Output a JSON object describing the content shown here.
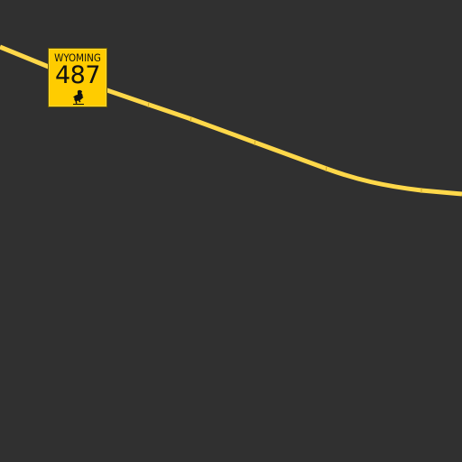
{
  "map": {
    "background_color": "#303030",
    "road": {
      "color": "#ffd84a",
      "casing_color": "#e6bd2e"
    },
    "route_shield": {
      "state": "WYOMING",
      "number": "487",
      "color": "#ffcc00",
      "icon": "bucking-horse-icon"
    }
  }
}
